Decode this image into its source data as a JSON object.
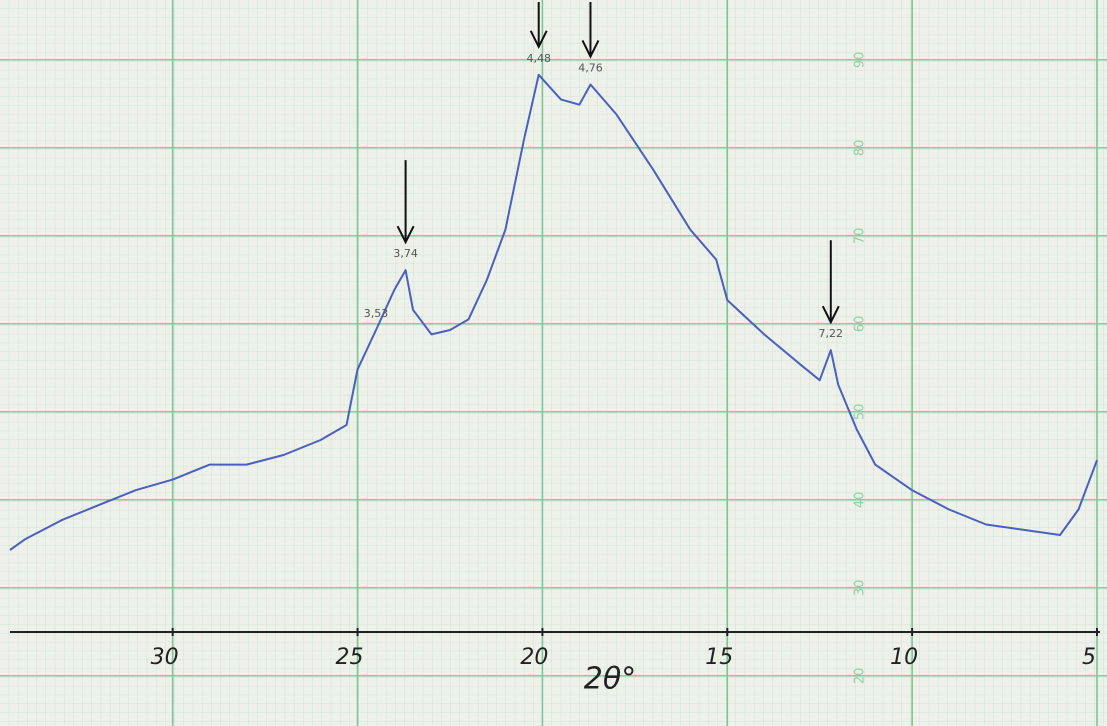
{
  "chart_data": {
    "type": "line",
    "xlabel": "2θ°",
    "xlim": [
      34.4,
      5
    ],
    "xticks": [
      30,
      25,
      20,
      15,
      10,
      5
    ],
    "ylim": [
      14.3,
      96.8
    ],
    "yticks": [
      20,
      30,
      40,
      50,
      60,
      70,
      80,
      90
    ],
    "grid": true,
    "color": "#4a5fc0",
    "x": [
      34.4,
      34,
      33,
      32,
      31,
      30,
      29,
      28,
      27,
      26,
      25.3,
      25,
      24.5,
      24,
      23.7,
      23.5,
      23,
      22.5,
      22,
      21.5,
      21,
      20.5,
      20.1,
      19.5,
      19,
      18.7,
      18,
      17,
      16,
      15.3,
      15,
      14,
      13,
      12.5,
      12.2,
      12,
      11.5,
      11,
      10,
      9,
      8,
      7,
      6,
      5.5,
      5
    ],
    "values": [
      34.3,
      35.5,
      37.7,
      39.4,
      41.1,
      42.3,
      44,
      44,
      45.1,
      46.8,
      48.5,
      54.8,
      59.3,
      63.9,
      66.1,
      61.6,
      58.8,
      59.3,
      60.5,
      65,
      70.7,
      80.9,
      88.3,
      85.5,
      84.9,
      87.2,
      83.8,
      77.5,
      70.7,
      67.3,
      62.7,
      58.8,
      55.3,
      53.6,
      57,
      53.1,
      48,
      44,
      41.1,
      38.9,
      37.2,
      36.6,
      36,
      38.9,
      44.5
    ],
    "annotations": [
      {
        "label": "3,53",
        "x": 24.5,
        "arrow": false
      },
      {
        "label": "3,74",
        "x": 23.7,
        "arrow": true
      },
      {
        "label": "4,48",
        "x": 20.1,
        "arrow": true
      },
      {
        "label": "4,76",
        "x": 18.7,
        "arrow": true
      },
      {
        "label": "7,22",
        "x": 12.2,
        "arrow": true
      }
    ]
  }
}
